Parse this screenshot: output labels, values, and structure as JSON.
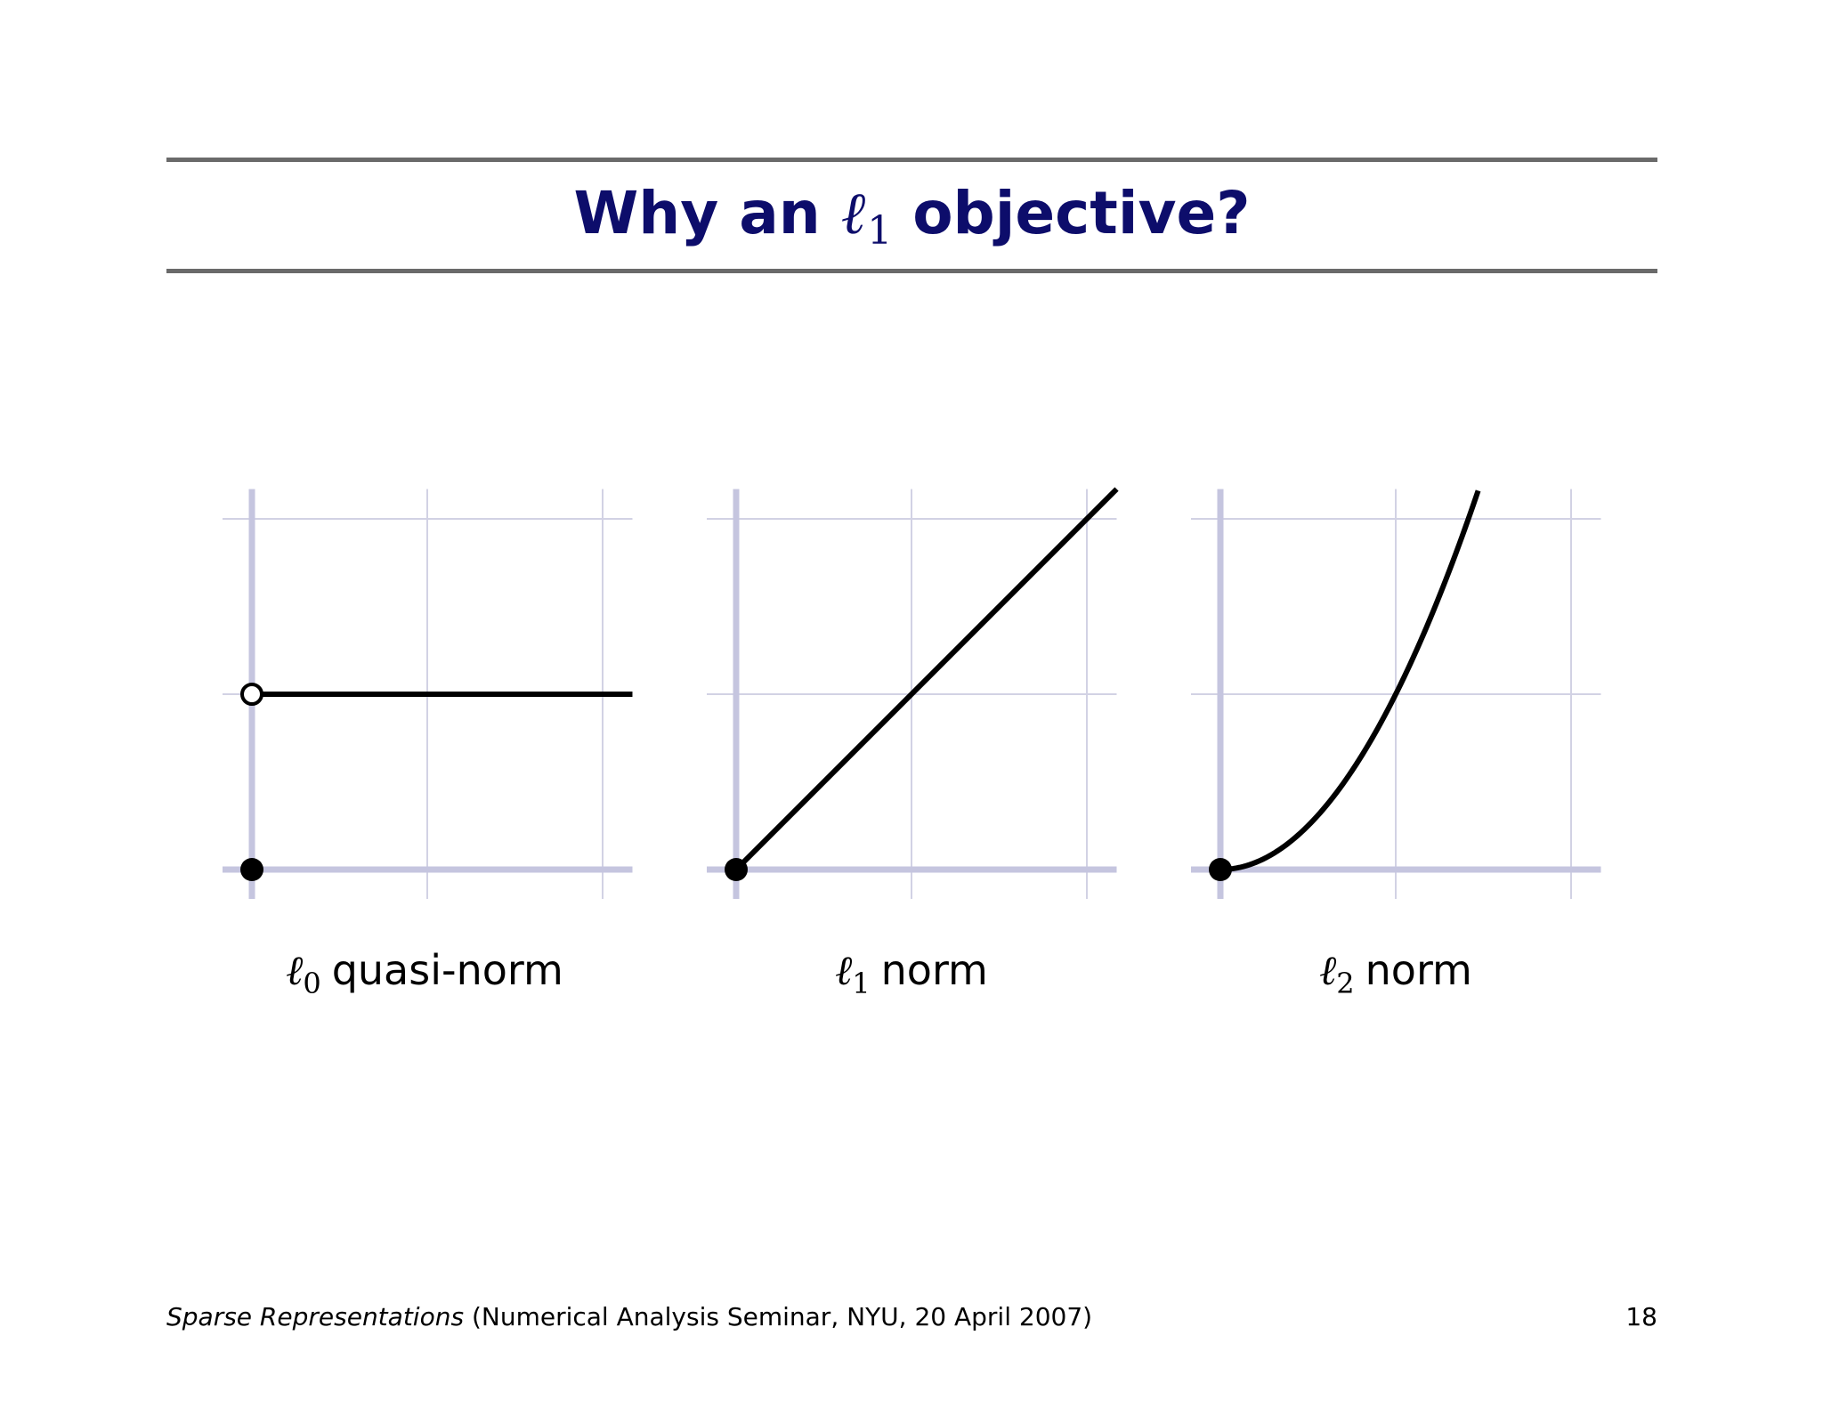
{
  "slide": {
    "title_prefix": "Why an ",
    "title_ell": "ℓ",
    "title_sub": "1",
    "title_suffix": " objective?"
  },
  "footer": {
    "talk_title": "Sparse Representations",
    "talk_details": " (Numerical Analysis Seminar, NYU, 20 April 2007)",
    "page_number": "18"
  },
  "colors": {
    "title": "#0d0d6b",
    "rule": "#6a6a6a",
    "axis": "#c5c5df",
    "grid": "#d2d2e4",
    "curve": "#000000"
  },
  "chart_data": [
    {
      "type": "line",
      "label_ell": "ℓ",
      "label_sub": "0",
      "label_text": "quasi-norm",
      "xlim": [
        0,
        2.17
      ],
      "ylim": [
        0,
        2.17
      ],
      "grid": true,
      "series": [
        {
          "x": [
            0,
            2.17
          ],
          "y": [
            1,
            1
          ]
        }
      ],
      "markers": [
        {
          "x": 0,
          "y": 1,
          "style": "open"
        },
        {
          "x": 0,
          "y": 0,
          "style": "filled"
        }
      ]
    },
    {
      "type": "line",
      "label_ell": "ℓ",
      "label_sub": "1",
      "label_text": "norm",
      "xlim": [
        0,
        2.17
      ],
      "ylim": [
        0,
        2.17
      ],
      "grid": true,
      "series": [
        {
          "x": [
            0,
            2.17
          ],
          "y": [
            0,
            2.17
          ]
        }
      ],
      "markers": [
        {
          "x": 0,
          "y": 0,
          "style": "filled"
        }
      ]
    },
    {
      "type": "line",
      "label_ell": "ℓ",
      "label_sub": "2",
      "label_text": "norm",
      "xlim": [
        0,
        2.17
      ],
      "ylim": [
        0,
        2.17
      ],
      "grid": true,
      "series": [
        {
          "function": "x^2",
          "x_range": [
            0,
            1.47
          ]
        }
      ],
      "markers": [
        {
          "x": 0,
          "y": 0,
          "style": "filled"
        }
      ]
    }
  ]
}
